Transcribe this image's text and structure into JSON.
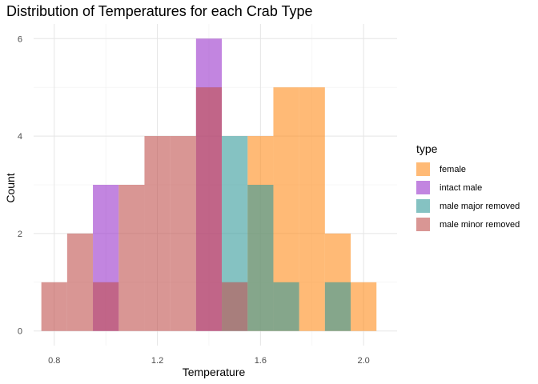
{
  "chart_data": {
    "type": "bar",
    "subtype": "overlaid-histogram",
    "title": "Distribution of Temperatures for each Crab Type",
    "xlabel": "Temperature",
    "ylabel": "Count",
    "xlim": [
      0.72,
      2.13
    ],
    "ylim": [
      -0.3,
      6.3
    ],
    "xticks": [
      0.8,
      1.2,
      1.6,
      2.0
    ],
    "xtick_labels": [
      "0.8",
      "1.2",
      "1.6",
      "2.0"
    ],
    "yticks": [
      0,
      2,
      4,
      6
    ],
    "ytick_labels": [
      "0",
      "2",
      "4",
      "6"
    ],
    "bin_width": 0.1,
    "bin_centers": [
      0.8,
      0.9,
      1.0,
      1.1,
      1.2,
      1.3,
      1.4,
      1.5,
      1.6,
      1.7,
      1.8,
      1.9,
      2.0
    ],
    "grid": true,
    "legend_title": "type",
    "legend_position": "right",
    "opacity": 0.6,
    "series": [
      {
        "name": "female",
        "color": "#ff8c1a",
        "values": [
          0,
          0,
          0,
          0,
          0,
          0,
          0,
          0,
          4,
          5,
          5,
          2,
          1
        ]
      },
      {
        "name": "intact male",
        "color": "#9933cc",
        "values": [
          0,
          0,
          3,
          0,
          0,
          0,
          6,
          0,
          0,
          0,
          0,
          0,
          0
        ]
      },
      {
        "name": "male major removed",
        "color": "#339999",
        "values": [
          0,
          0,
          0,
          0,
          0,
          0,
          0,
          4,
          3,
          1,
          0,
          1,
          0
        ]
      },
      {
        "name": "male minor removed",
        "color": "#c0504d",
        "values": [
          1,
          2,
          1,
          3,
          4,
          4,
          5,
          1,
          0,
          0,
          0,
          0,
          0
        ]
      }
    ]
  }
}
